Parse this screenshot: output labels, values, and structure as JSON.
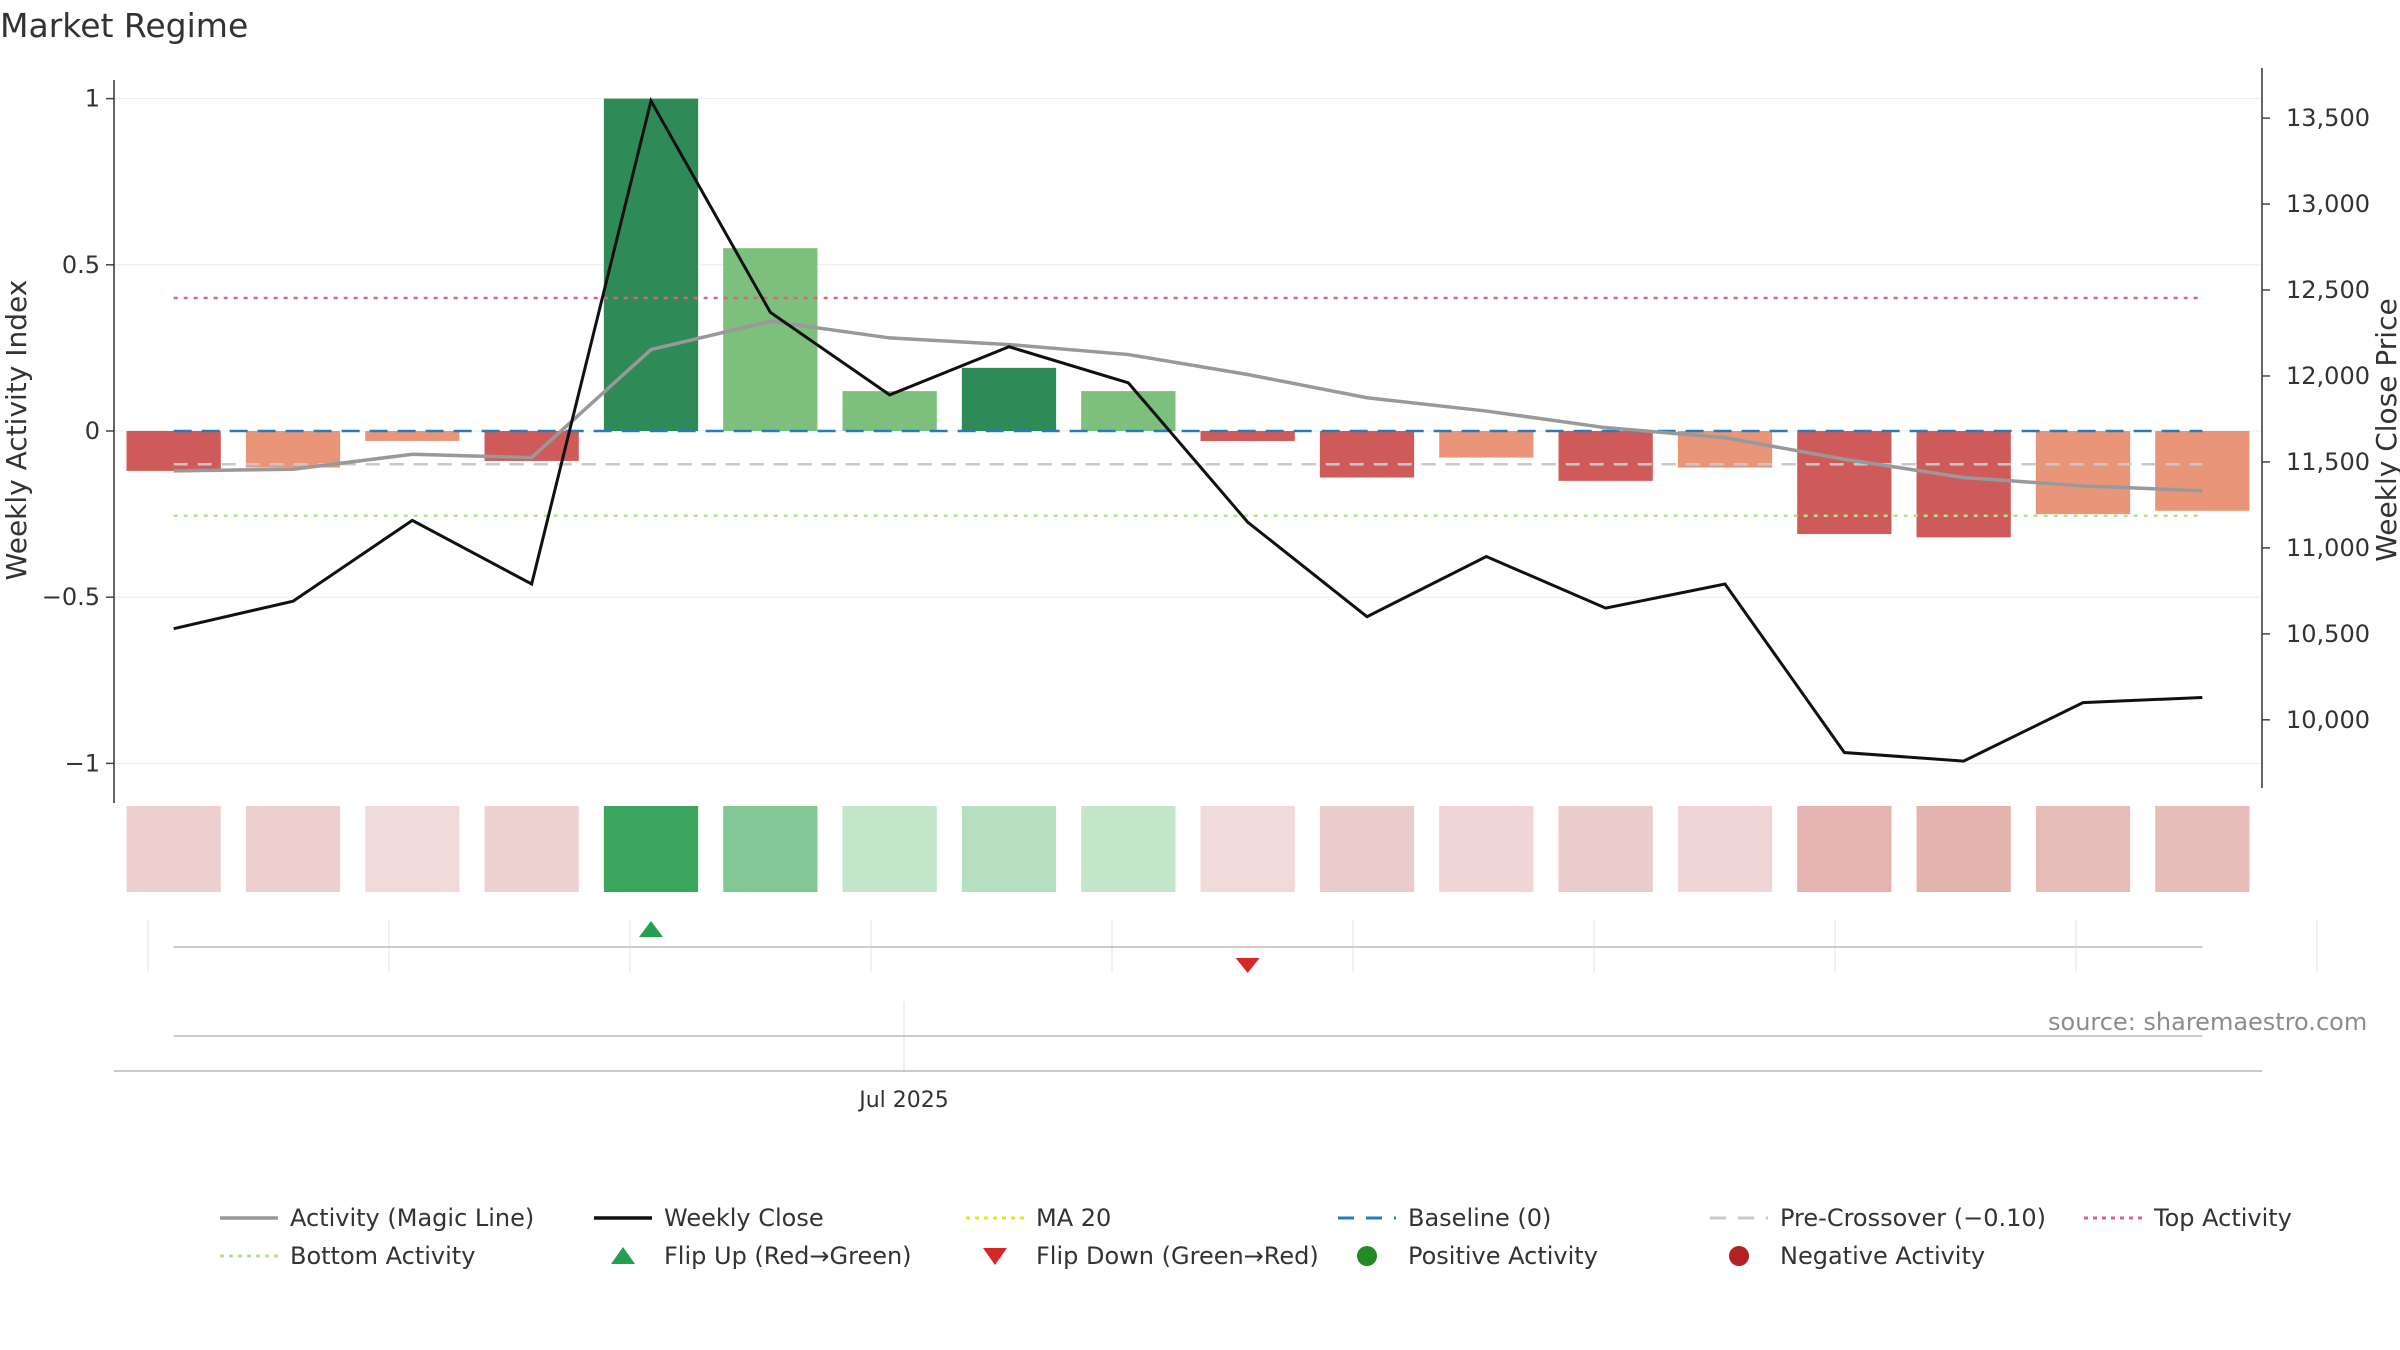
{
  "title": "Market Regime",
  "source": "source: sharemaestro.com",
  "chart_data": {
    "type": "bar",
    "x_tick_labels": [
      "Jul 2025"
    ],
    "ylabel": "Weekly Activity Index",
    "y2label": "Weekly Close Price",
    "ylim": [
      -1.05,
      1.05
    ],
    "y_ticks": [
      1,
      0.5,
      0,
      -0.5,
      -1
    ],
    "y_tick_labels": [
      "1",
      "0.5",
      "0",
      "−0.5",
      "−1"
    ],
    "y2lim": [
      9650,
      13710
    ],
    "y2_ticks": [
      13500,
      13000,
      12500,
      12000,
      11500,
      11000,
      10500,
      10000
    ],
    "y2_tick_labels": [
      "13,500",
      "13,000",
      "12,500",
      "12,000",
      "11,500",
      "11,000",
      "10,500",
      "10,000"
    ],
    "weeks": 18,
    "activity": [
      -0.12,
      -0.11,
      -0.03,
      -0.09,
      1.0,
      0.55,
      0.12,
      0.19,
      0.12,
      -0.03,
      -0.14,
      -0.08,
      -0.15,
      -0.11,
      -0.31,
      -0.32,
      -0.25,
      -0.24
    ],
    "bar_colors": [
      "#cf5a5a",
      "#e8957a",
      "#e8957a",
      "#cf5a5a",
      "#2e8b57",
      "#7dbf7d",
      "#7dbf7d",
      "#2e8b57",
      "#7dbf7d",
      "#cf5a5a",
      "#cf5a5a",
      "#e8957a",
      "#cf5a5a",
      "#e8957a",
      "#cf5a5a",
      "#cf5a5a",
      "#e8957a",
      "#e8957a"
    ],
    "heat_colors": [
      "#edcfcf",
      "#edcfcf",
      "#f1dada",
      "#eed2d2",
      "#3aa65e",
      "#84c796",
      "#c3e6cb",
      "#b6dfc2",
      "#c3e6cb",
      "#f1dada",
      "#ebcccc",
      "#efd5d5",
      "#ebcccc",
      "#efd5d5",
      "#e5b4b0",
      "#e3b3ae",
      "#e6bdb9",
      "#e6bdb9"
    ],
    "magic_line": [
      -0.12,
      -0.115,
      -0.07,
      -0.08,
      0.245,
      0.33,
      0.28,
      0.26,
      0.23,
      0.17,
      0.1,
      0.06,
      0.01,
      -0.02,
      -0.085,
      -0.14,
      -0.165,
      -0.18
    ],
    "weekly_close": [
      10530,
      10690,
      11160,
      10790,
      13600,
      12370,
      11890,
      12170,
      11960,
      11150,
      10600,
      10950,
      10650,
      10790,
      9810,
      9760,
      10100,
      10130
    ],
    "baseline": 0,
    "pre_crossover": -0.1,
    "top_activity": 0.4,
    "bottom_activity": -0.255,
    "flip_up_week": 4,
    "flip_down_week": 9,
    "colors": {
      "magic_line": "#999999",
      "weekly_close": "#111111",
      "ma20": "#e6e61a",
      "baseline": "#2b7bb9",
      "pre_crossover": "#c8c8c8",
      "top_activity": "#e06080",
      "bottom_activity": "#b8e08a",
      "flip_up": "#22a050",
      "flip_down": "#d62728",
      "positive": "#228b22",
      "negative": "#b22222"
    },
    "legend": [
      {
        "label": "Activity (Magic Line)",
        "kind": "line",
        "color": "#999999"
      },
      {
        "label": "Weekly Close",
        "kind": "line",
        "color": "#111111"
      },
      {
        "label": "MA 20",
        "kind": "dot",
        "color": "#e6e61a"
      },
      {
        "label": "Baseline (0)",
        "kind": "dash",
        "color": "#2b7bb9"
      },
      {
        "label": "Pre-Crossover (−0.10)",
        "kind": "dash",
        "color": "#c8c8c8"
      },
      {
        "label": "Top Activity",
        "kind": "dot",
        "color": "#e06080"
      },
      {
        "label": "Bottom Activity",
        "kind": "dot",
        "color": "#b8e08a"
      },
      {
        "label": "Flip Up (Red→Green)",
        "kind": "tri-up",
        "color": "#22a050"
      },
      {
        "label": "Flip Down (Green→Red)",
        "kind": "tri-down",
        "color": "#d62728"
      },
      {
        "label": "Positive Activity",
        "kind": "circle",
        "color": "#228b22"
      },
      {
        "label": "Negative Activity",
        "kind": "circle",
        "color": "#b22222"
      }
    ]
  }
}
